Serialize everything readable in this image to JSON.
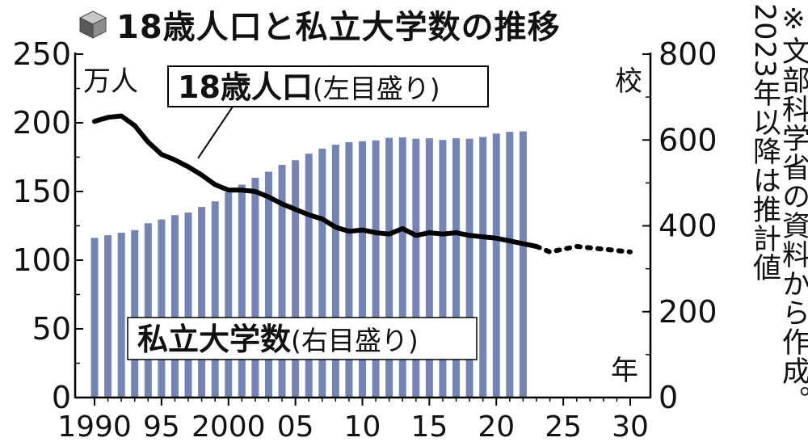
{
  "icon": "cube-icon",
  "note": "※文部科学省の資料から作成。2023年以降は推計値",
  "chart_data": {
    "type": "bar-line",
    "title": "18歳人口と私立大学数の推移",
    "left_axis": {
      "unit": "万人",
      "range": [
        0,
        250
      ],
      "ticks": [
        "0",
        "50",
        "100",
        "150",
        "200",
        "250"
      ]
    },
    "right_axis": {
      "unit": "校",
      "range": [
        0,
        800
      ],
      "ticks": [
        "0",
        "200",
        "400",
        "600",
        "800"
      ]
    },
    "x_axis": {
      "unit": "年",
      "range": [
        1990,
        2030
      ],
      "tick_values": [
        1990,
        1995,
        2000,
        2005,
        2010,
        2015,
        2020,
        2025,
        2030
      ],
      "tick_labels": [
        "1990",
        "95",
        "2000",
        "05",
        "10",
        "15",
        "20",
        "25",
        "30"
      ]
    },
    "series": [
      {
        "name": "18歳人口",
        "label": "18歳人口",
        "label_paren": "(左目盛り)",
        "type": "line",
        "axis": "left",
        "color": "#000000",
        "points": [
          [
            1990,
            201
          ],
          [
            1991,
            204
          ],
          [
            1992,
            205
          ],
          [
            1993,
            198
          ],
          [
            1994,
            186
          ],
          [
            1995,
            177
          ],
          [
            1996,
            173
          ],
          [
            1997,
            168
          ],
          [
            1998,
            162
          ],
          [
            1999,
            155
          ],
          [
            2000,
            151
          ],
          [
            2001,
            151
          ],
          [
            2002,
            150
          ],
          [
            2003,
            146
          ],
          [
            2004,
            141
          ],
          [
            2005,
            137
          ],
          [
            2006,
            133
          ],
          [
            2007,
            130
          ],
          [
            2008,
            124
          ],
          [
            2009,
            121
          ],
          [
            2010,
            122
          ],
          [
            2011,
            120
          ],
          [
            2012,
            119
          ],
          [
            2013,
            123
          ],
          [
            2014,
            118
          ],
          [
            2015,
            120
          ],
          [
            2016,
            119
          ],
          [
            2017,
            120
          ],
          [
            2018,
            118
          ],
          [
            2019,
            117
          ],
          [
            2020,
            116
          ],
          [
            2021,
            114
          ],
          [
            2022,
            112
          ],
          [
            2023,
            110
          ]
        ],
        "projected_points": [
          [
            2023,
            110
          ],
          [
            2024,
            106
          ],
          [
            2025,
            108
          ],
          [
            2026,
            110
          ],
          [
            2027,
            109
          ],
          [
            2028,
            108
          ],
          [
            2029,
            107
          ],
          [
            2030,
            106
          ]
        ]
      },
      {
        "name": "私立大学数",
        "label": "私立大学数",
        "label_paren": "(右目盛り)",
        "type": "bar",
        "axis": "right",
        "color": "#7484b5",
        "points": [
          [
            1990,
            372
          ],
          [
            1991,
            378
          ],
          [
            1992,
            384
          ],
          [
            1993,
            390
          ],
          [
            1994,
            406
          ],
          [
            1995,
            415
          ],
          [
            1996,
            425
          ],
          [
            1997,
            431
          ],
          [
            1998,
            444
          ],
          [
            1999,
            457
          ],
          [
            2000,
            478
          ],
          [
            2001,
            496
          ],
          [
            2002,
            512
          ],
          [
            2003,
            526
          ],
          [
            2004,
            542
          ],
          [
            2005,
            553
          ],
          [
            2006,
            568
          ],
          [
            2007,
            580
          ],
          [
            2008,
            589
          ],
          [
            2009,
            595
          ],
          [
            2010,
            597
          ],
          [
            2011,
            599
          ],
          [
            2012,
            605
          ],
          [
            2013,
            606
          ],
          [
            2014,
            603
          ],
          [
            2015,
            604
          ],
          [
            2016,
            600
          ],
          [
            2017,
            604
          ],
          [
            2018,
            603
          ],
          [
            2019,
            607
          ],
          [
            2020,
            615
          ],
          [
            2021,
            619
          ],
          [
            2022,
            620
          ]
        ]
      }
    ]
  }
}
